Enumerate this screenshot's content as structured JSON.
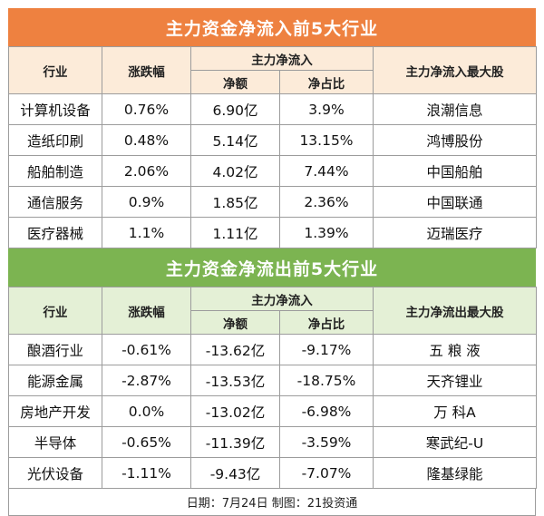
{
  "inflow": {
    "title": "主力资金净流入前5大行业",
    "headers": {
      "industry": "行业",
      "change": "涨跌幅",
      "group": "主力净流入",
      "amount": "净额",
      "ratio": "净占比",
      "top_stock": "主力净流入最大股"
    },
    "rows": [
      {
        "industry": "计算机设备",
        "change": "0.76%",
        "amount": "6.90亿",
        "ratio": "3.9%",
        "top_stock": "浪潮信息"
      },
      {
        "industry": "造纸印刷",
        "change": "0.48%",
        "amount": "5.14亿",
        "ratio": "13.15%",
        "top_stock": "鸿博股份"
      },
      {
        "industry": "船舶制造",
        "change": "2.06%",
        "amount": "4.02亿",
        "ratio": "7.44%",
        "top_stock": "中国船舶"
      },
      {
        "industry": "通信服务",
        "change": "0.9%",
        "amount": "1.85亿",
        "ratio": "2.36%",
        "top_stock": "中国联通"
      },
      {
        "industry": "医疗器械",
        "change": "1.1%",
        "amount": "1.11亿",
        "ratio": "1.39%",
        "top_stock": "迈瑞医疗"
      }
    ]
  },
  "outflow": {
    "title": "主力资金净流出前5大行业",
    "headers": {
      "industry": "行业",
      "change": "涨跌幅",
      "group": "主力净流入",
      "amount": "净额",
      "ratio": "净占比",
      "top_stock": "主力净流出最大股"
    },
    "rows": [
      {
        "industry": "酿酒行业",
        "change": "-0.61%",
        "amount": "-13.62亿",
        "ratio": "-9.17%",
        "top_stock": "五 粮 液"
      },
      {
        "industry": "能源金属",
        "change": "-2.87%",
        "amount": "-13.53亿",
        "ratio": "-18.75%",
        "top_stock": "天齐锂业"
      },
      {
        "industry": "房地产开发",
        "change": "0.0%",
        "amount": "-13.02亿",
        "ratio": "-6.98%",
        "top_stock": "万 科A"
      },
      {
        "industry": "半导体",
        "change": "-0.65%",
        "amount": "-11.39亿",
        "ratio": "-3.59%",
        "top_stock": "寒武纪-U"
      },
      {
        "industry": "光伏设备",
        "change": "-1.11%",
        "amount": "-9.43亿",
        "ratio": "-7.07%",
        "top_stock": "隆基绿能"
      }
    ]
  },
  "footer": "日期：7月24日 制图：21投资通",
  "colors": {
    "inflow_header": "#ee8140",
    "outflow_header": "#7cb451"
  }
}
